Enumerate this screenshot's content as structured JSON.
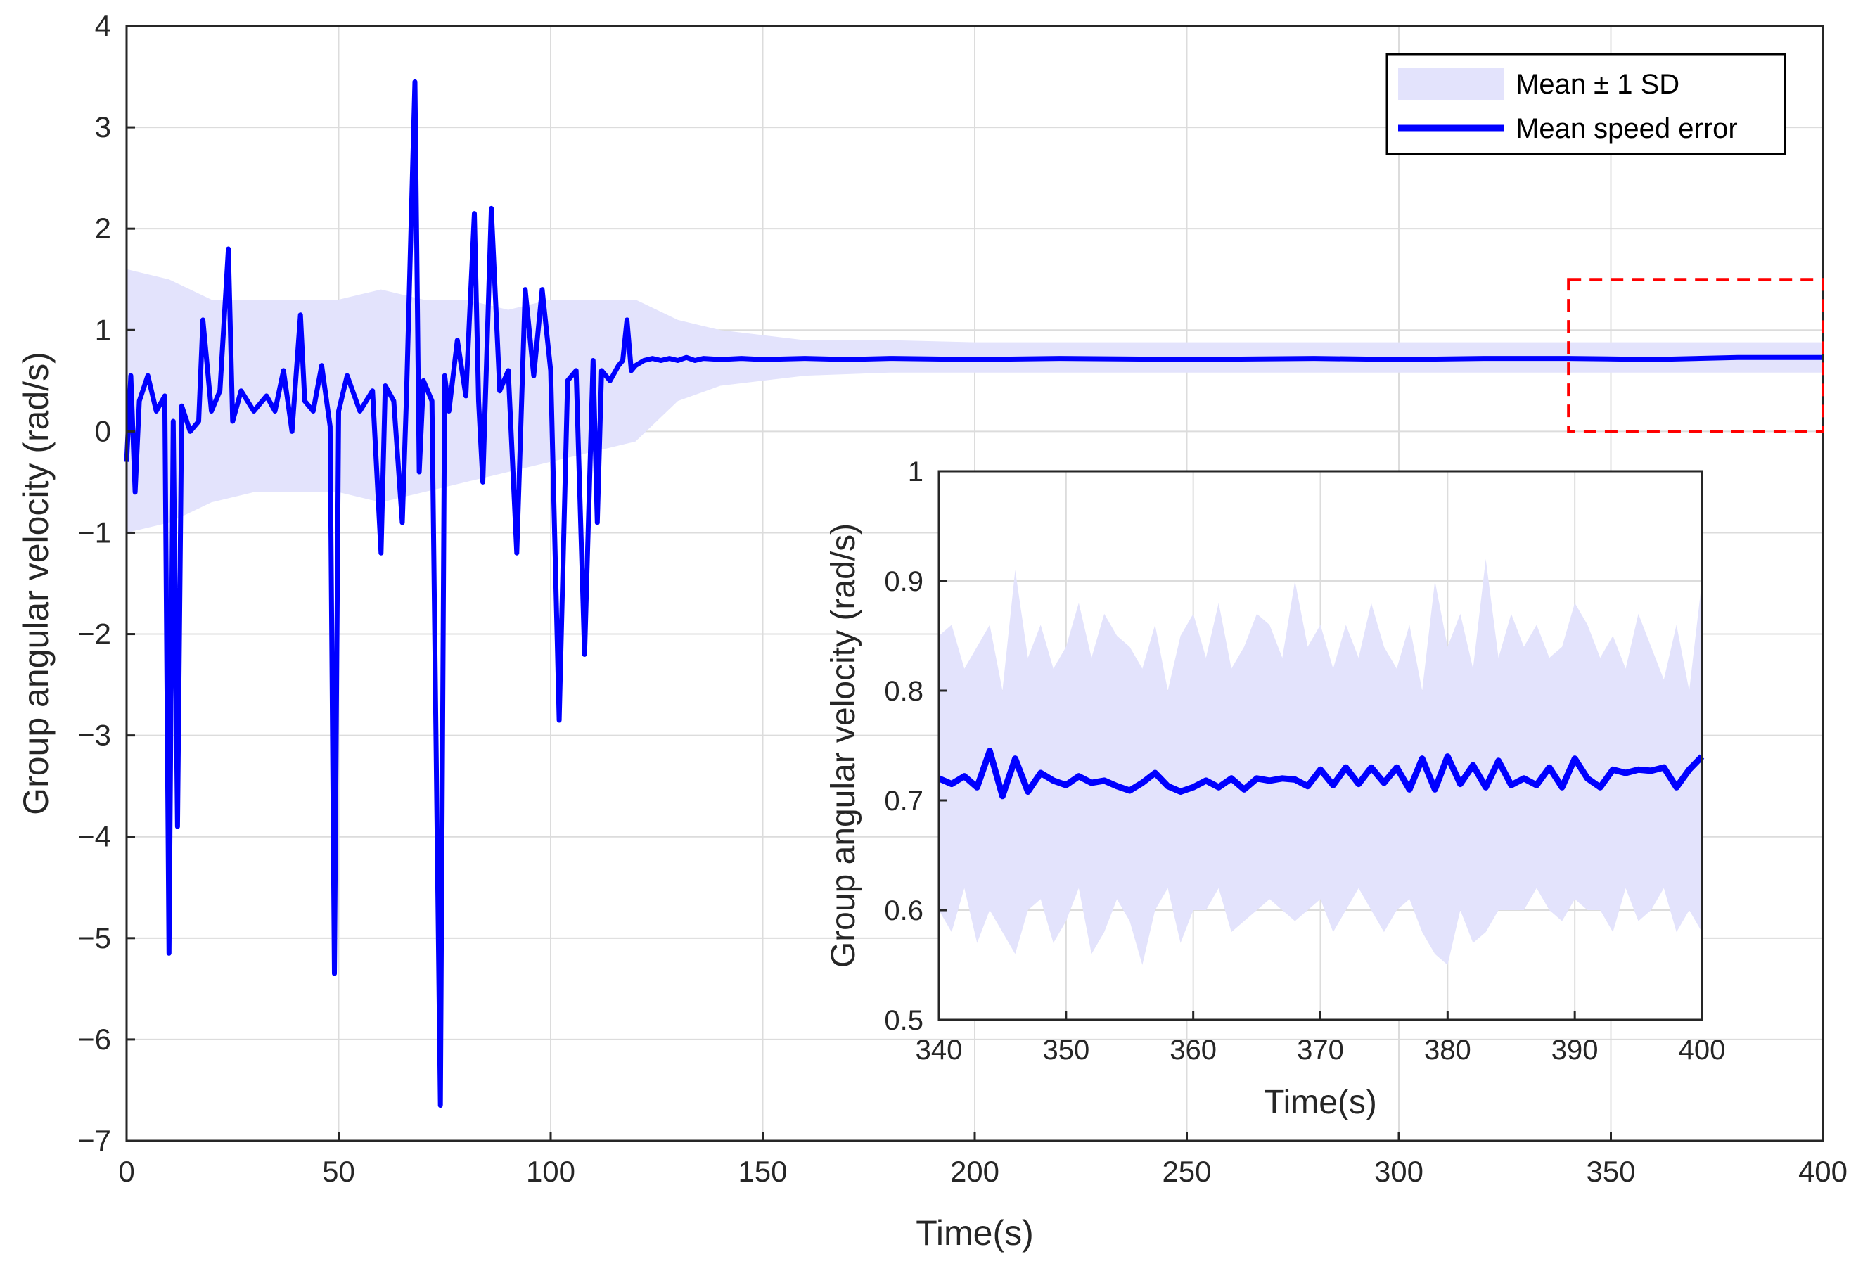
{
  "chart_data": [
    {
      "type": "line",
      "xlabel": "Time(s)",
      "ylabel": "Group angular velocity (rad/s)",
      "xlim": [
        0,
        400
      ],
      "ylim": [
        -7,
        4
      ],
      "x_ticks": [
        0,
        50,
        100,
        150,
        200,
        250,
        300,
        350,
        400
      ],
      "y_ticks": [
        -7,
        -6,
        -5,
        -4,
        -3,
        -2,
        -1,
        0,
        1,
        2,
        3,
        4
      ],
      "y_tick_labels": [
        "−7",
        "−6",
        "−5",
        "−4",
        "−3",
        "−2",
        "−1",
        "0",
        "1",
        "2",
        "3",
        "4"
      ],
      "grid": true,
      "legend_position": "top-right",
      "legend": [
        "Mean ± 1 SD",
        "Mean speed error"
      ],
      "series": [
        {
          "name": "Mean speed error",
          "x": [
            0,
            1,
            2,
            3,
            5,
            7,
            9,
            10,
            11,
            12,
            13,
            15,
            17,
            18,
            20,
            22,
            24,
            25,
            27,
            30,
            33,
            35,
            37,
            39,
            41,
            42,
            44,
            46,
            48,
            49,
            50,
            52,
            55,
            58,
            60,
            61,
            63,
            65,
            66,
            68,
            69,
            70,
            72,
            74,
            75,
            76,
            78,
            80,
            82,
            83,
            84,
            86,
            88,
            90,
            92,
            94,
            96,
            98,
            100,
            102,
            104,
            106,
            108,
            110,
            111,
            112,
            114,
            116,
            117,
            118,
            119,
            120,
            122,
            124,
            126,
            128,
            130,
            132,
            134,
            136,
            140,
            145,
            150,
            160,
            170,
            180,
            200,
            220,
            250,
            280,
            300,
            320,
            340,
            360,
            380,
            400
          ],
          "values": [
            -0.3,
            0.55,
            -0.6,
            0.3,
            0.55,
            0.2,
            0.35,
            -5.15,
            0.1,
            -3.9,
            0.25,
            0.0,
            0.1,
            1.1,
            0.2,
            0.4,
            1.8,
            0.1,
            0.4,
            0.2,
            0.35,
            0.2,
            0.6,
            0.0,
            1.15,
            0.3,
            0.2,
            0.65,
            0.05,
            -5.35,
            0.2,
            0.55,
            0.2,
            0.4,
            -1.2,
            0.45,
            0.3,
            -0.9,
            0.35,
            3.45,
            -0.4,
            0.5,
            0.3,
            -6.65,
            0.55,
            0.2,
            0.9,
            0.35,
            2.15,
            0.3,
            -0.5,
            2.2,
            0.4,
            0.6,
            -1.2,
            1.4,
            0.55,
            1.4,
            0.6,
            -2.85,
            0.5,
            0.6,
            -2.2,
            0.7,
            -0.9,
            0.6,
            0.5,
            0.65,
            0.7,
            1.1,
            0.6,
            0.65,
            0.7,
            0.72,
            0.7,
            0.72,
            0.7,
            0.73,
            0.7,
            0.72,
            0.71,
            0.72,
            0.71,
            0.72,
            0.71,
            0.72,
            0.71,
            0.72,
            0.71,
            0.72,
            0.71,
            0.72,
            0.72,
            0.71,
            0.73,
            0.73
          ]
        }
      ],
      "band": {
        "name": "Mean ± 1 SD",
        "x": [
          0,
          10,
          20,
          30,
          40,
          50,
          60,
          70,
          80,
          90,
          100,
          110,
          120,
          130,
          140,
          150,
          160,
          180,
          200,
          250,
          300,
          350,
          400
        ],
        "upper": [
          1.6,
          1.5,
          1.3,
          1.3,
          1.3,
          1.3,
          1.4,
          1.3,
          1.3,
          1.2,
          1.3,
          1.3,
          1.3,
          1.1,
          1.0,
          0.95,
          0.9,
          0.9,
          0.88,
          0.88,
          0.88,
          0.88,
          0.88
        ],
        "lower": [
          -1.0,
          -0.9,
          -0.7,
          -0.6,
          -0.6,
          -0.6,
          -0.7,
          -0.6,
          -0.5,
          -0.4,
          -0.3,
          -0.2,
          -0.1,
          0.3,
          0.45,
          0.5,
          0.55,
          0.58,
          0.58,
          0.58,
          0.58,
          0.58,
          0.58
        ]
      },
      "zoom_box": {
        "x": [
          340,
          400
        ],
        "y": [
          0,
          1.5
        ]
      }
    },
    {
      "type": "line",
      "xlabel": "Time(s)",
      "ylabel": "Group angular velocity (rad/s)",
      "xlim": [
        340,
        400
      ],
      "ylim": [
        0.5,
        1
      ],
      "x_ticks": [
        340,
        350,
        360,
        370,
        380,
        390,
        400
      ],
      "y_ticks": [
        0.5,
        0.6,
        0.7,
        0.8,
        0.9,
        1
      ],
      "y_tick_labels": [
        "0.5",
        "0.6",
        "0.7",
        "0.8",
        "0.9",
        "1"
      ],
      "grid": true,
      "series": [
        {
          "name": "Mean speed error",
          "x": [
            340,
            341,
            342,
            343,
            344,
            345,
            346,
            347,
            348,
            349,
            350,
            351,
            352,
            353,
            354,
            355,
            356,
            357,
            358,
            359,
            360,
            361,
            362,
            363,
            364,
            365,
            366,
            367,
            368,
            369,
            370,
            371,
            372,
            373,
            374,
            375,
            376,
            377,
            378,
            379,
            380,
            381,
            382,
            383,
            384,
            385,
            386,
            387,
            388,
            389,
            390,
            391,
            392,
            393,
            394,
            395,
            396,
            397,
            398,
            399,
            400
          ],
          "values": [
            0.72,
            0.715,
            0.722,
            0.712,
            0.745,
            0.704,
            0.738,
            0.708,
            0.725,
            0.718,
            0.714,
            0.722,
            0.716,
            0.718,
            0.713,
            0.709,
            0.716,
            0.725,
            0.713,
            0.708,
            0.712,
            0.718,
            0.712,
            0.72,
            0.71,
            0.72,
            0.718,
            0.72,
            0.719,
            0.713,
            0.728,
            0.714,
            0.73,
            0.715,
            0.73,
            0.716,
            0.73,
            0.71,
            0.738,
            0.71,
            0.74,
            0.715,
            0.732,
            0.712,
            0.736,
            0.714,
            0.72,
            0.714,
            0.73,
            0.712,
            0.738,
            0.72,
            0.712,
            0.728,
            0.725,
            0.728,
            0.727,
            0.73,
            0.712,
            0.728,
            0.74
          ]
        }
      ],
      "band": {
        "name": "Mean ± 1 SD",
        "x": [
          340,
          341,
          342,
          343,
          344,
          345,
          346,
          347,
          348,
          349,
          350,
          351,
          352,
          353,
          354,
          355,
          356,
          357,
          358,
          359,
          360,
          361,
          362,
          363,
          364,
          365,
          366,
          367,
          368,
          369,
          370,
          371,
          372,
          373,
          374,
          375,
          376,
          377,
          378,
          379,
          380,
          381,
          382,
          383,
          384,
          385,
          386,
          387,
          388,
          389,
          390,
          391,
          392,
          393,
          394,
          395,
          396,
          397,
          398,
          399,
          400
        ],
        "upper": [
          0.85,
          0.86,
          0.82,
          0.84,
          0.86,
          0.8,
          0.91,
          0.83,
          0.86,
          0.82,
          0.84,
          0.88,
          0.83,
          0.87,
          0.85,
          0.84,
          0.82,
          0.86,
          0.8,
          0.85,
          0.87,
          0.83,
          0.88,
          0.82,
          0.84,
          0.87,
          0.86,
          0.83,
          0.9,
          0.84,
          0.86,
          0.82,
          0.86,
          0.83,
          0.88,
          0.84,
          0.82,
          0.86,
          0.8,
          0.9,
          0.84,
          0.87,
          0.82,
          0.92,
          0.83,
          0.87,
          0.84,
          0.86,
          0.83,
          0.84,
          0.88,
          0.86,
          0.83,
          0.85,
          0.82,
          0.87,
          0.84,
          0.81,
          0.86,
          0.8,
          0.9
        ],
        "lower": [
          0.6,
          0.58,
          0.62,
          0.57,
          0.6,
          0.58,
          0.56,
          0.6,
          0.61,
          0.57,
          0.59,
          0.62,
          0.56,
          0.58,
          0.61,
          0.59,
          0.55,
          0.6,
          0.62,
          0.57,
          0.6,
          0.6,
          0.62,
          0.58,
          0.59,
          0.6,
          0.61,
          0.6,
          0.59,
          0.6,
          0.61,
          0.58,
          0.6,
          0.62,
          0.6,
          0.58,
          0.6,
          0.61,
          0.58,
          0.56,
          0.55,
          0.6,
          0.57,
          0.58,
          0.6,
          0.6,
          0.6,
          0.62,
          0.6,
          0.59,
          0.61,
          0.6,
          0.6,
          0.58,
          0.62,
          0.59,
          0.6,
          0.62,
          0.58,
          0.6,
          0.58
        ]
      }
    }
  ],
  "colors": {
    "line": "#0000ff",
    "band": "#e3e3fc",
    "axis": "#262626",
    "grid": "#dcdcdc",
    "zoom_box": "#ff0000"
  }
}
